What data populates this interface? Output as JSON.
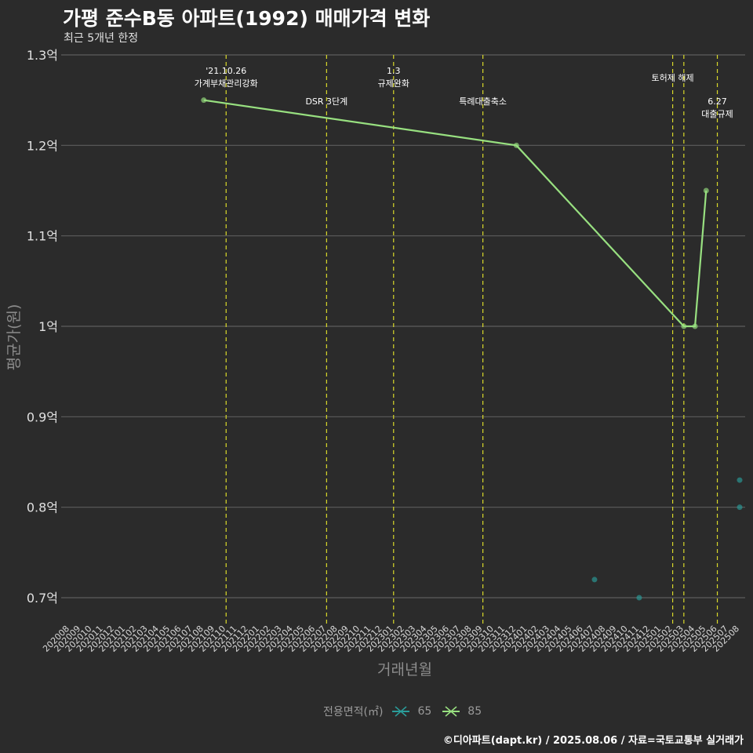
{
  "header": {
    "title": "가평 준수B동 아파트(1992) 매매가격 변화",
    "subtitle": "최근 5개년 한정"
  },
  "caption": "©디아파트(dapt.kr) / 2025.08.06 / 자료=국토교통부 실거래가",
  "legend": {
    "title": "전용면적(㎡)",
    "items": [
      {
        "label": "65",
        "color": "#2a9d9a"
      },
      {
        "label": "85",
        "color": "#98e080"
      }
    ]
  },
  "chart_data": {
    "type": "line",
    "title": "가평 준수B동 아파트(1992) 매매가격 변화",
    "xlabel": "거래년월",
    "ylabel": "평균가(원)",
    "ylim": [
      0.67,
      1.3
    ],
    "yticks": [
      {
        "value": 0.7,
        "label": "0.7억"
      },
      {
        "value": 0.8,
        "label": "0.8억"
      },
      {
        "value": 0.9,
        "label": "0.9억"
      },
      {
        "value": 1.0,
        "label": "1억"
      },
      {
        "value": 1.1,
        "label": "1.1억"
      },
      {
        "value": 1.2,
        "label": "1.2억"
      },
      {
        "value": 1.3,
        "label": "1.3억"
      }
    ],
    "categories": [
      "202008",
      "202009",
      "202010",
      "202011",
      "202012",
      "202101",
      "202102",
      "202103",
      "202104",
      "202105",
      "202106",
      "202107",
      "202108",
      "202109",
      "202110",
      "202111",
      "202112",
      "202201",
      "202202",
      "202203",
      "202204",
      "202205",
      "202206",
      "202207",
      "202208",
      "202209",
      "202210",
      "202211",
      "202212",
      "202301",
      "202302",
      "202303",
      "202304",
      "202305",
      "202306",
      "202307",
      "202308",
      "202309",
      "202310",
      "202311",
      "202312",
      "202401",
      "202402",
      "202403",
      "202404",
      "202405",
      "202406",
      "202407",
      "202408",
      "202409",
      "202410",
      "202411",
      "202412",
      "202501",
      "202502",
      "202503",
      "202504",
      "202505",
      "202506",
      "202507",
      "202508"
    ],
    "series": [
      {
        "name": "65",
        "color": "#2a9d9a",
        "line": false,
        "points": [
          {
            "x": "202407",
            "y": 0.72
          },
          {
            "x": "202411",
            "y": 0.7
          },
          {
            "x": "202508",
            "y": 0.83
          },
          {
            "x": "202508",
            "y": 0.8
          }
        ]
      },
      {
        "name": "85",
        "color": "#98e080",
        "line": true,
        "points": [
          {
            "x": "202108",
            "y": 1.25
          },
          {
            "x": "202312",
            "y": 1.2
          },
          {
            "x": "202503",
            "y": 1.0
          },
          {
            "x": "202504",
            "y": 1.0
          },
          {
            "x": "202505",
            "y": 1.15
          }
        ]
      }
    ],
    "events": [
      {
        "x": "202110",
        "lines": [
          "'21.10.26",
          "가계부채관리강화"
        ],
        "level": 1
      },
      {
        "x": "202207",
        "lines": [
          "DSR 3단계"
        ],
        "level": 2
      },
      {
        "x": "202301",
        "lines": [
          "1.3",
          "규제완화"
        ],
        "level": 1
      },
      {
        "x": "202309",
        "lines": [
          "특례대출축소"
        ],
        "level": 2
      },
      {
        "x": "202502",
        "lines": [
          "토허제 해제"
        ],
        "level": 1
      },
      {
        "x": "202503",
        "lines": [],
        "level": 0
      },
      {
        "x": "202506",
        "lines": [
          "6.27",
          "대출규제"
        ],
        "level": 2
      }
    ]
  }
}
